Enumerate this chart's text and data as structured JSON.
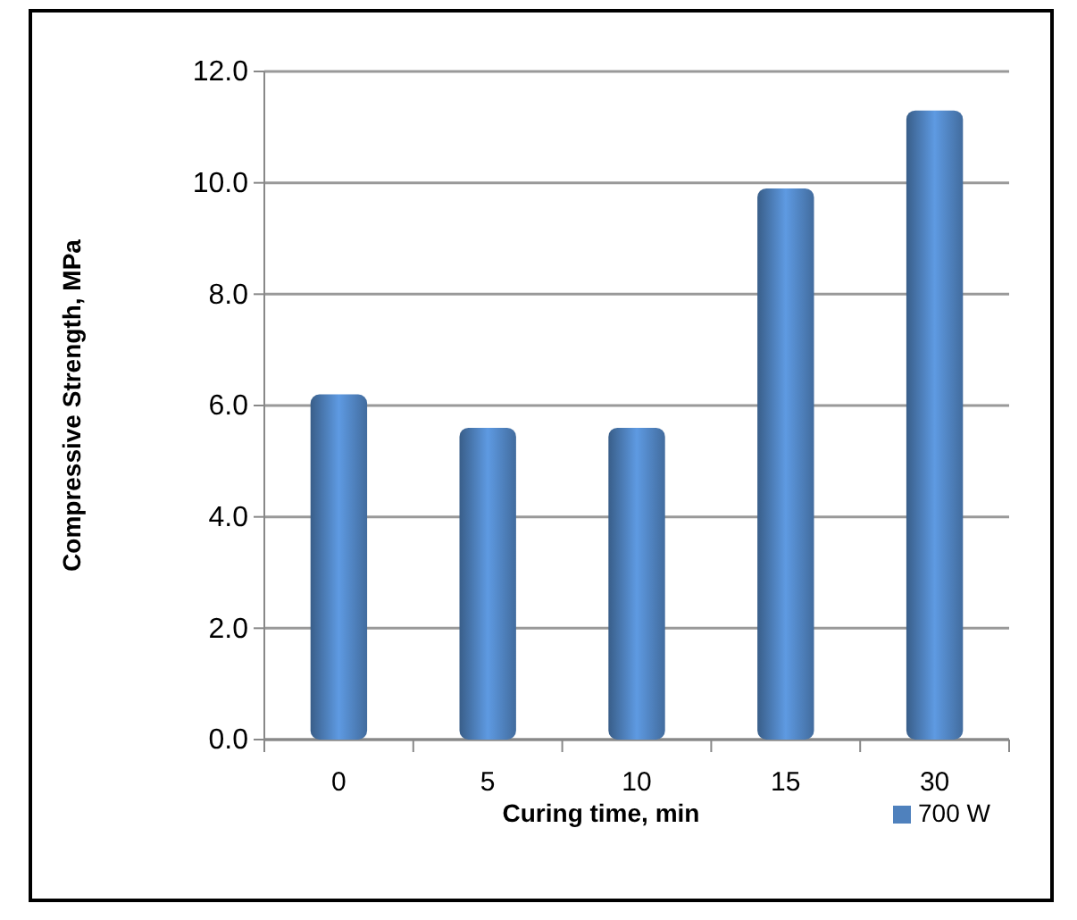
{
  "chart_data": {
    "type": "bar",
    "xlabel": "Curing time, min",
    "ylabel": "Compressive Strength, MPa",
    "categories": [
      "0",
      "5",
      "10",
      "15",
      "30"
    ],
    "series": [
      {
        "name": "700 W",
        "color": "#4f81bd",
        "values": [
          6.2,
          5.6,
          5.6,
          9.9,
          11.3
        ]
      }
    ],
    "ylim": [
      0,
      12
    ],
    "yticks": [
      {
        "value": 0,
        "label": "0.0"
      },
      {
        "value": 2,
        "label": "2.0"
      },
      {
        "value": 4,
        "label": "4.0"
      },
      {
        "value": 6,
        "label": "6.0"
      },
      {
        "value": 8,
        "label": "8.0"
      },
      {
        "value": 10,
        "label": "10.0"
      },
      {
        "value": 12,
        "label": "12.0"
      }
    ],
    "grid": "y",
    "legend": "bottom right"
  }
}
